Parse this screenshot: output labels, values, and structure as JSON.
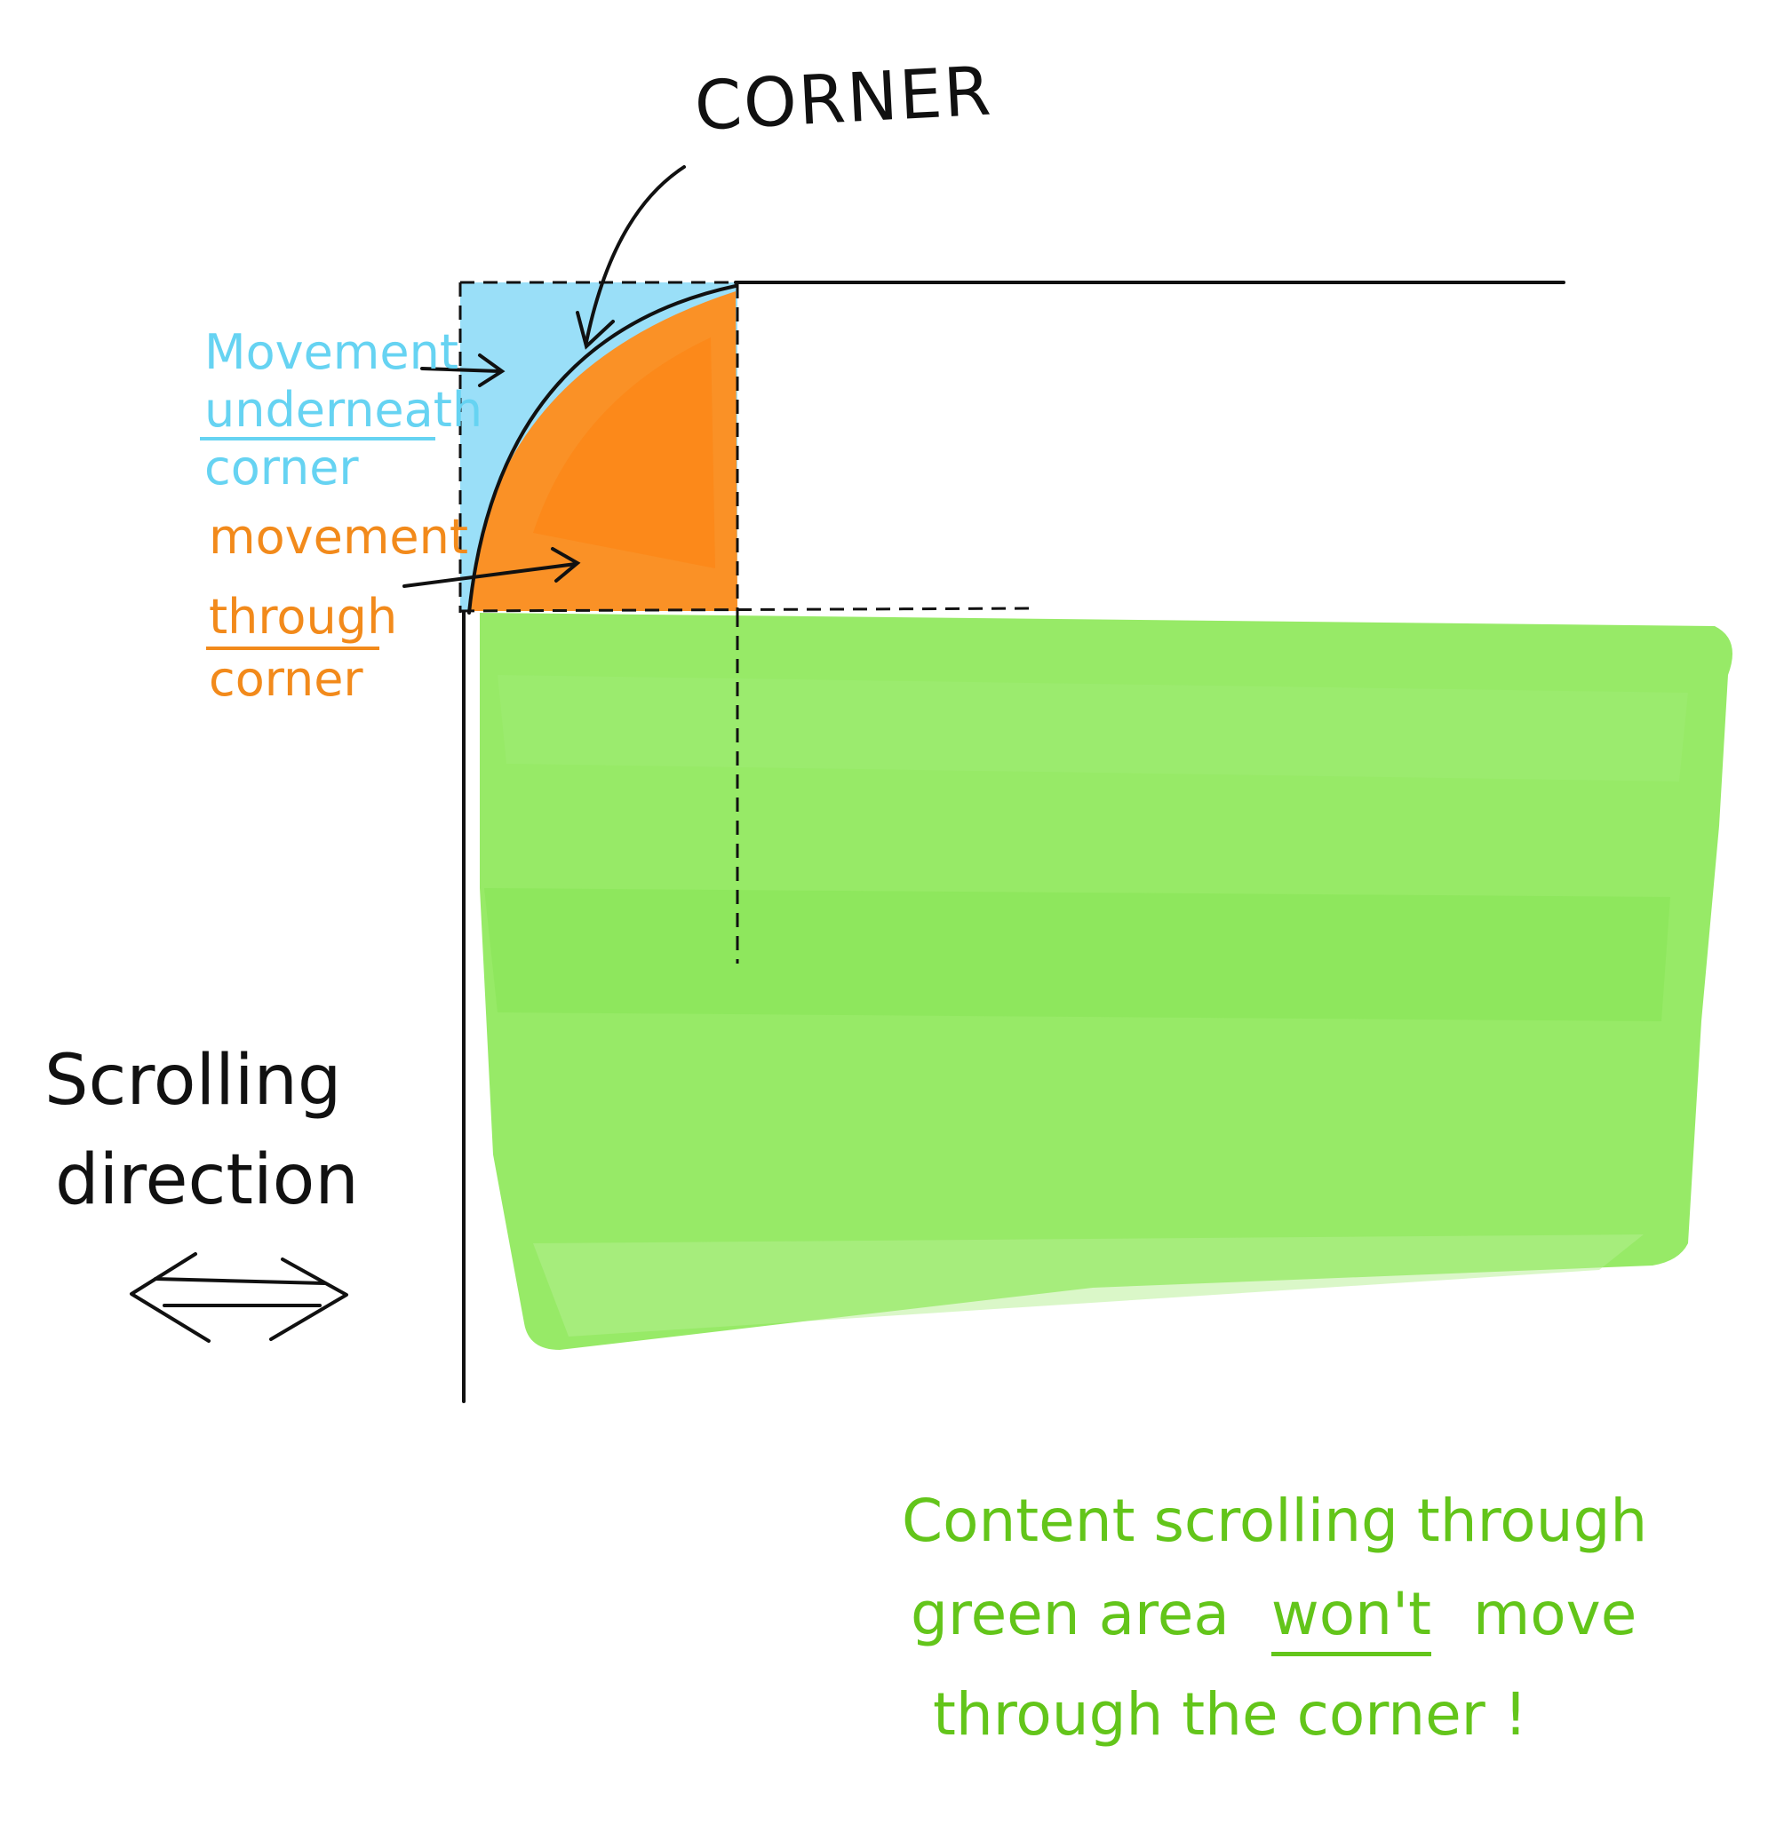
{
  "labels": {
    "corner": "CORNER",
    "blue_note": {
      "line1": "Movement",
      "line2": "underneath",
      "line3": "corner"
    },
    "orange_note": {
      "line1": "movement",
      "line2": "through",
      "line3": "corner"
    },
    "scroll_note": {
      "line1": "Scrolling",
      "line2": "direction"
    },
    "green_note": {
      "line1": "Content scrolling through",
      "line2a": "green area",
      "line2b": "won't",
      "line2c": "move",
      "line3": "through the corner !"
    }
  },
  "colors": {
    "blue_area": "#8fdcf7",
    "orange_area": "#ff8c1a",
    "green_area": "#8ee85a",
    "ink": "#111111",
    "blue_text": "#66d3f2",
    "orange_text": "#f28a1b",
    "green_text": "#63c51a"
  }
}
